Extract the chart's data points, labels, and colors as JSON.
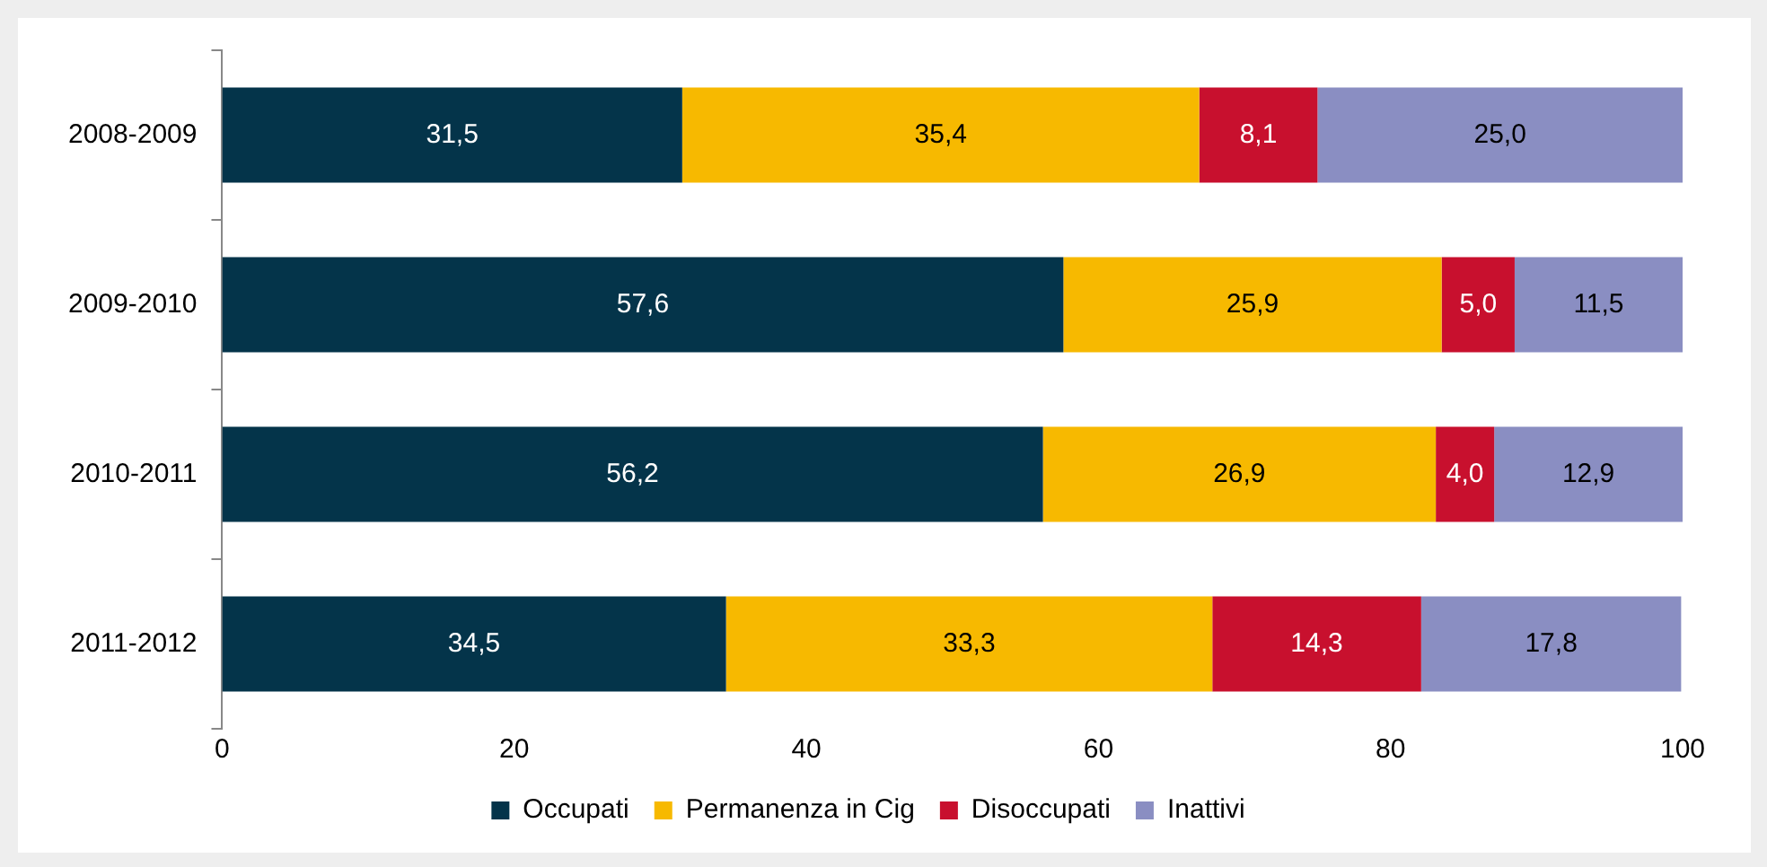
{
  "chart_data": {
    "type": "bar",
    "orientation": "horizontal",
    "stacked": true,
    "categories": [
      "2008-2009",
      "2009-2010",
      "2010-2011",
      "2011-2012"
    ],
    "series": [
      {
        "name": "Occupati",
        "color": "#04344a",
        "values": [
          31.5,
          57.6,
          56.2,
          34.5
        ],
        "value_labels": [
          "31,5",
          "57,6",
          "56,2",
          "34,5"
        ]
      },
      {
        "name": "Permanenza in Cig",
        "color": "#f7b900",
        "values": [
          35.4,
          25.9,
          26.9,
          33.3
        ],
        "value_labels": [
          "35,4",
          "25,9",
          "26,9",
          "33,3"
        ]
      },
      {
        "name": "Disoccupati",
        "color": "#c8102e",
        "values": [
          8.1,
          5.0,
          4.0,
          14.3
        ],
        "value_labels": [
          "8,1",
          "5,0",
          "4,0",
          "14,3"
        ]
      },
      {
        "name": "Inattivi",
        "color": "#8a8ec2",
        "values": [
          25.0,
          11.5,
          12.9,
          17.8
        ],
        "value_labels": [
          "25,0",
          "11,5",
          "12,9",
          "17,8"
        ]
      }
    ],
    "xlim": [
      0,
      100
    ],
    "xticks": [
      0,
      20,
      40,
      60,
      80,
      100
    ],
    "grid": false,
    "legend": "bottom"
  }
}
